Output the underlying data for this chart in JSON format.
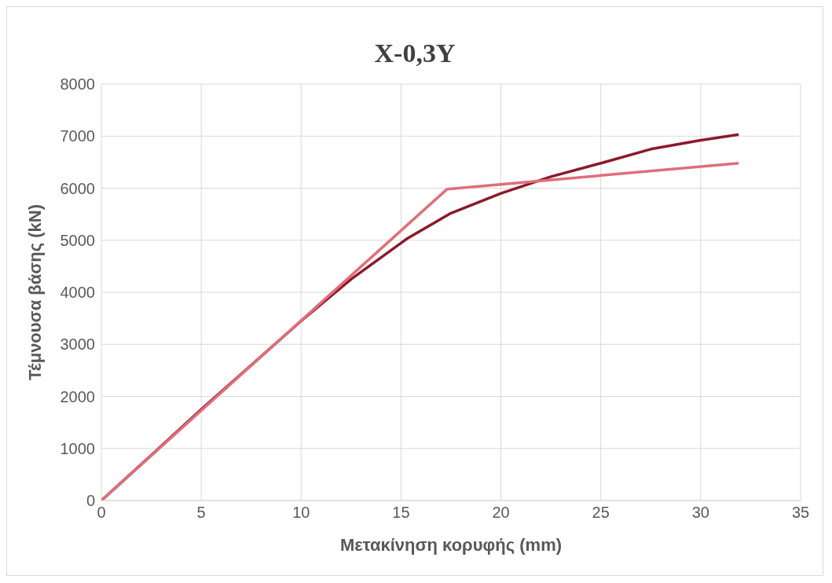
{
  "chart_data": {
    "type": "line",
    "title": "X-0,3Y",
    "xlabel": "Μετακίνηση κορυφής (mm)",
    "ylabel": "Τέμνουσα βάσης (kN)",
    "series": [
      {
        "color": "#8b1a2b",
        "x": [
          0,
          2.5,
          5,
          7.5,
          10,
          12.5,
          15.3,
          17.5,
          20,
          22.5,
          25,
          27.5,
          30,
          31.9
        ],
        "values": [
          0,
          870,
          1750,
          2600,
          3450,
          4250,
          5030,
          5520,
          5900,
          6220,
          6480,
          6750,
          6920,
          7030
        ]
      },
      {
        "color": "#e06e7a",
        "x": [
          0,
          17.3,
          31.9
        ],
        "values": [
          0,
          5980,
          6480
        ]
      }
    ],
    "xlim": [
      0,
      35
    ],
    "xticks": [
      0,
      5,
      10,
      15,
      20,
      25,
      30,
      35
    ],
    "ylim": [
      0,
      8000
    ],
    "yticks": [
      0,
      1000,
      2000,
      3000,
      4000,
      5000,
      6000,
      7000,
      8000
    ],
    "grid": true,
    "marker": "none",
    "line_style": "solid"
  }
}
